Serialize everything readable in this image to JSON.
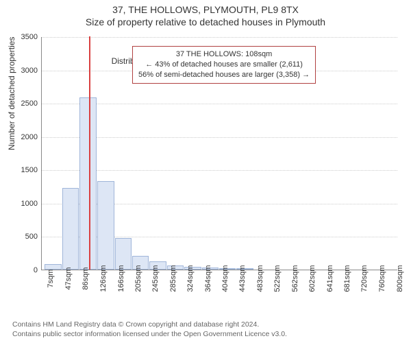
{
  "header": {
    "line1": "37, THE HOLLOWS, PLYMOUTH, PL9 8TX",
    "line2": "Size of property relative to detached houses in Plymouth"
  },
  "chart": {
    "type": "histogram",
    "ylabel": "Number of detached properties",
    "xlabel": "Distribution of detached houses by size in Plymouth",
    "ylim": [
      0,
      3500
    ],
    "ytick_step": 500,
    "yticks": [
      0,
      500,
      1000,
      1500,
      2000,
      2500,
      3000,
      3500
    ],
    "xticks_labels": [
      "7sqm",
      "47sqm",
      "86sqm",
      "126sqm",
      "166sqm",
      "205sqm",
      "245sqm",
      "285sqm",
      "324sqm",
      "364sqm",
      "404sqm",
      "443sqm",
      "483sqm",
      "522sqm",
      "562sqm",
      "602sqm",
      "641sqm",
      "681sqm",
      "720sqm",
      "760sqm",
      "800sqm"
    ],
    "xticks_positions": [
      7,
      47,
      86,
      126,
      166,
      205,
      245,
      285,
      324,
      364,
      404,
      443,
      483,
      522,
      562,
      602,
      641,
      681,
      720,
      760,
      800
    ],
    "xlim": [
      0,
      810
    ],
    "bars": [
      {
        "x0": 7,
        "x1": 47,
        "value": 80
      },
      {
        "x0": 47,
        "x1": 86,
        "value": 1230
      },
      {
        "x0": 86,
        "x1": 126,
        "value": 2580
      },
      {
        "x0": 126,
        "x1": 166,
        "value": 1330
      },
      {
        "x0": 166,
        "x1": 205,
        "value": 470
      },
      {
        "x0": 205,
        "x1": 245,
        "value": 210
      },
      {
        "x0": 245,
        "x1": 285,
        "value": 120
      },
      {
        "x0": 285,
        "x1": 324,
        "value": 60
      },
      {
        "x0": 324,
        "x1": 364,
        "value": 40
      },
      {
        "x0": 364,
        "x1": 404,
        "value": 30
      },
      {
        "x0": 404,
        "x1": 443,
        "value": 25
      },
      {
        "x0": 443,
        "x1": 483,
        "value": 15
      }
    ],
    "bar_fill": "#dde6f5",
    "bar_stroke": "#9fb5d9",
    "grid_color": "#cccccc",
    "background_color": "#ffffff",
    "indicator": {
      "x": 108,
      "color": "#d94040"
    }
  },
  "tooltip": {
    "line1": "37 THE HOLLOWS: 108sqm",
    "line2": "← 43% of detached houses are smaller (2,611)",
    "line3": "56% of semi-detached houses are larger (3,358) →",
    "border_color": "#b04040"
  },
  "footer": {
    "line1": "Contains HM Land Registry data © Crown copyright and database right 2024.",
    "line2": "Contains public sector information licensed under the Open Government Licence v3.0."
  }
}
